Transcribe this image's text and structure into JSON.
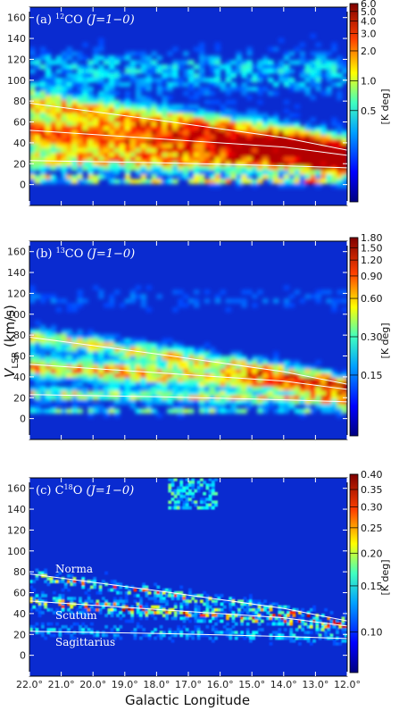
{
  "chart_data": {
    "type": "heatmap",
    "xlabel": "Galactic Longitude",
    "ylabel": "V_LSR (km/s)",
    "xlim": [
      22.0,
      12.0
    ],
    "ylim": [
      -20,
      170
    ],
    "x_tick_labels": [
      "22.0°",
      "21.0°",
      "20.0°",
      "19.0°",
      "18.0°",
      "17.0°",
      "16.0°",
      "15.0°",
      "14.0°",
      "13.0°",
      "12.0°"
    ],
    "x_ticks": [
      22,
      21,
      20,
      19,
      18,
      17,
      16,
      15,
      14,
      13,
      12
    ],
    "y_ticks": [
      0,
      20,
      40,
      60,
      80,
      100,
      120,
      140,
      160
    ],
    "colorbar_unit": "[K deg]",
    "panels": [
      {
        "id": "a",
        "title_prefix": "(a) ",
        "isotope_mass": "12",
        "molecule": "CO",
        "transition": " (J=1−0)",
        "colorbar_ticks": [
          "6.0",
          "5.0",
          "4.0",
          "3.0",
          "2.0",
          "1.0",
          "0.5"
        ],
        "colorbar_values": [
          6.0,
          5.0,
          4.0,
          3.0,
          2.0,
          1.0,
          0.5
        ],
        "colorbar_max": 6.0,
        "colorbar_min": 0.06
      },
      {
        "id": "b",
        "title_prefix": "(b) ",
        "isotope_mass": "13",
        "molecule": "CO",
        "transition": " (J=1−0)",
        "colorbar_ticks": [
          "1.80",
          "1.50",
          "1.20",
          "0.90",
          "0.60",
          "0.30",
          "0.15"
        ],
        "colorbar_values": [
          1.8,
          1.5,
          1.2,
          0.9,
          0.6,
          0.3,
          0.15
        ],
        "colorbar_max": 1.8,
        "colorbar_min": 0.05
      },
      {
        "id": "c",
        "title_prefix": "(c) ",
        "isotope_mass": "18",
        "molecule": "C O",
        "transition": " (J=1−0)",
        "colorbar_ticks": [
          "0.40",
          "0.35",
          "0.30",
          "0.25",
          "0.20",
          "0.15",
          "0.10"
        ],
        "colorbar_values": [
          0.4,
          0.35,
          0.3,
          0.25,
          0.2,
          0.15,
          0.1
        ],
        "colorbar_max": 0.4,
        "colorbar_min": 0.07
      }
    ],
    "spiral_arms": [
      {
        "name": "Norma",
        "points": [
          [
            22.0,
            78
          ],
          [
            18.0,
            62
          ],
          [
            14.0,
            45
          ],
          [
            12.0,
            33
          ]
        ]
      },
      {
        "name": "Scutum",
        "points": [
          [
            22.0,
            52
          ],
          [
            18.0,
            44
          ],
          [
            14.0,
            36
          ],
          [
            12.0,
            28
          ]
        ]
      },
      {
        "name": "Sagittarius",
        "points": [
          [
            22.0,
            23
          ],
          [
            18.0,
            21
          ],
          [
            14.0,
            18
          ],
          [
            12.0,
            16
          ]
        ]
      }
    ]
  }
}
